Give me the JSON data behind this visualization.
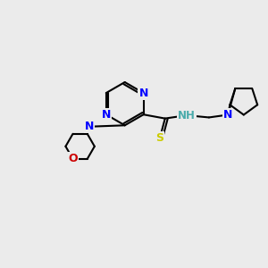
{
  "background_color": "#ebebeb",
  "atom_colors": {
    "N_blue": "#0000ff",
    "O": "#cc0000",
    "S": "#cccc00",
    "C": "#000000",
    "NH": "#4aabab"
  },
  "bond_color": "#000000",
  "figsize": [
    3.0,
    3.0
  ],
  "dpi": 100,
  "xlim": [
    0,
    10
  ],
  "ylim": [
    0,
    10
  ]
}
